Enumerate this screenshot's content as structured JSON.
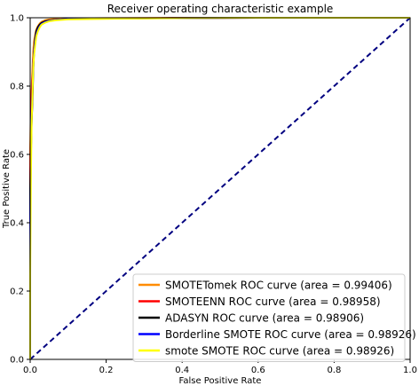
{
  "chart_data": {
    "type": "line",
    "title": "Receiver operating characteristic example",
    "xlabel": "False Positive Rate",
    "ylabel": "True Positive Rate",
    "xlim": [
      0.0,
      1.0
    ],
    "ylim": [
      0.0,
      1.0
    ],
    "xticks": [
      "0.0",
      "0.2",
      "0.4",
      "0.6",
      "0.8",
      "1.0"
    ],
    "yticks": [
      "0.0",
      "0.2",
      "0.4",
      "0.6",
      "0.8",
      "1.0"
    ],
    "grid": false,
    "legend_position": "lower-right",
    "series": [
      {
        "name": "SMOTETomek ROC curve (area = 0.99406)",
        "color": "#ff8c00",
        "x": [
          0.0,
          0.0,
          0.002,
          0.004,
          0.006,
          0.008,
          0.01,
          0.013,
          0.016,
          0.02,
          0.025,
          0.03,
          0.04,
          0.05,
          0.07,
          0.1,
          0.2,
          0.4,
          0.6,
          0.8,
          1.0
        ],
        "y": [
          0.0,
          0.62,
          0.75,
          0.8,
          0.85,
          0.9,
          0.93,
          0.95,
          0.965,
          0.975,
          0.983,
          0.988,
          0.993,
          0.995,
          0.997,
          0.998,
          0.999,
          1.0,
          1.0,
          1.0,
          1.0
        ]
      },
      {
        "name": "SMOTEENN ROC curve (area = 0.98958)",
        "color": "#ff0000",
        "x": [
          0.0,
          0.0,
          0.002,
          0.004,
          0.006,
          0.008,
          0.01,
          0.013,
          0.016,
          0.02,
          0.025,
          0.03,
          0.04,
          0.05,
          0.07,
          0.1,
          0.2,
          0.4,
          0.6,
          0.8,
          1.0
        ],
        "y": [
          0.0,
          0.55,
          0.72,
          0.78,
          0.82,
          0.86,
          0.9,
          0.93,
          0.95,
          0.965,
          0.975,
          0.982,
          0.988,
          0.991,
          0.994,
          0.996,
          0.998,
          0.999,
          1.0,
          1.0,
          1.0
        ]
      },
      {
        "name": "ADASYN ROC curve (area = 0.98906)",
        "color": "#000000",
        "x": [
          0.0,
          0.0,
          0.002,
          0.004,
          0.006,
          0.008,
          0.01,
          0.013,
          0.016,
          0.02,
          0.025,
          0.03,
          0.04,
          0.05,
          0.07,
          0.1,
          0.2,
          0.4,
          0.6,
          0.8,
          1.0
        ],
        "y": [
          0.0,
          0.5,
          0.62,
          0.7,
          0.76,
          0.84,
          0.9,
          0.94,
          0.96,
          0.972,
          0.98,
          0.985,
          0.99,
          0.992,
          0.994,
          0.996,
          0.998,
          0.999,
          1.0,
          1.0,
          1.0
        ]
      },
      {
        "name": "Borderline SMOTE ROC curve (area = 0.98926)",
        "color": "#0000ff",
        "x": [
          0.0,
          0.0,
          0.002,
          0.004,
          0.006,
          0.008,
          0.01,
          0.013,
          0.016,
          0.02,
          0.025,
          0.03,
          0.04,
          0.05,
          0.07,
          0.1,
          0.2,
          0.4,
          0.6,
          0.8,
          1.0
        ],
        "y": [
          0.0,
          0.4,
          0.6,
          0.72,
          0.8,
          0.86,
          0.9,
          0.93,
          0.95,
          0.965,
          0.975,
          0.982,
          0.988,
          0.991,
          0.994,
          0.996,
          0.998,
          0.999,
          1.0,
          1.0,
          1.0
        ]
      },
      {
        "name": "smote SMOTE ROC curve (area = 0.98926)",
        "color": "#ffff00",
        "x": [
          0.0,
          0.0,
          0.002,
          0.004,
          0.006,
          0.008,
          0.01,
          0.013,
          0.016,
          0.02,
          0.025,
          0.03,
          0.04,
          0.05,
          0.07,
          0.1,
          0.2,
          0.4,
          0.6,
          0.8,
          1.0
        ],
        "y": [
          0.0,
          0.25,
          0.55,
          0.7,
          0.78,
          0.85,
          0.89,
          0.92,
          0.945,
          0.96,
          0.972,
          0.98,
          0.986,
          0.99,
          0.993,
          0.995,
          0.997,
          0.999,
          1.0,
          1.0,
          1.0
        ]
      }
    ],
    "reference_line": {
      "x": [
        0.0,
        1.0
      ],
      "y": [
        0.0,
        1.0
      ],
      "color": "#000080",
      "style": "dashed"
    }
  }
}
